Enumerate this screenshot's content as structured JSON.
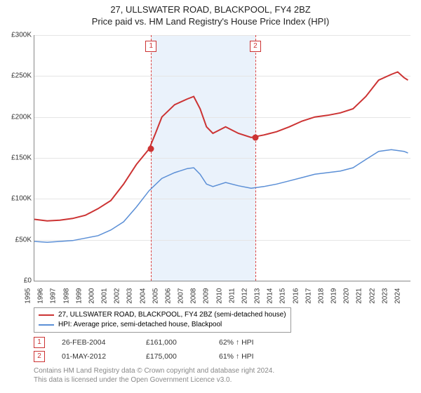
{
  "title_line1": "27, ULLSWATER ROAD, BLACKPOOL, FY4 2BZ",
  "title_line2": "Price paid vs. HM Land Registry's House Price Index (HPI)",
  "chart": {
    "type": "line",
    "background_color": "#ffffff",
    "grid_color": "#e5e5e5",
    "highlight_band_color": "#eaf2fb",
    "highlight_start_year": 2004.15,
    "highlight_end_year": 2012.33,
    "xlim": [
      1995,
      2024.5
    ],
    "ylim": [
      0,
      300000
    ],
    "ytick_step": 50000,
    "yticks": [
      "£0",
      "£50K",
      "£100K",
      "£150K",
      "£200K",
      "£250K",
      "£300K"
    ],
    "xticks": [
      1995,
      1996,
      1997,
      1998,
      1999,
      2000,
      2001,
      2002,
      2003,
      2004,
      2005,
      2006,
      2007,
      2008,
      2009,
      2010,
      2011,
      2012,
      2013,
      2014,
      2015,
      2016,
      2017,
      2018,
      2019,
      2020,
      2021,
      2022,
      2023,
      2024
    ],
    "label_fontsize": 10,
    "series": [
      {
        "name": "price_paid",
        "label": "27, ULLSWATER ROAD, BLACKPOOL, FY4 2BZ (semi-detached house)",
        "color": "#cc3333",
        "line_width": 2,
        "data": [
          [
            1995,
            75000
          ],
          [
            1996,
            73000
          ],
          [
            1997,
            74000
          ],
          [
            1998,
            76000
          ],
          [
            1999,
            80000
          ],
          [
            2000,
            88000
          ],
          [
            2001,
            98000
          ],
          [
            2002,
            118000
          ],
          [
            2003,
            142000
          ],
          [
            2004,
            161000
          ],
          [
            2004.5,
            180000
          ],
          [
            2005,
            200000
          ],
          [
            2006,
            215000
          ],
          [
            2007,
            222000
          ],
          [
            2007.5,
            225000
          ],
          [
            2008,
            210000
          ],
          [
            2008.5,
            188000
          ],
          [
            2009,
            180000
          ],
          [
            2010,
            188000
          ],
          [
            2011,
            180000
          ],
          [
            2012,
            175000
          ],
          [
            2013,
            178000
          ],
          [
            2014,
            182000
          ],
          [
            2015,
            188000
          ],
          [
            2016,
            195000
          ],
          [
            2017,
            200000
          ],
          [
            2018,
            202000
          ],
          [
            2019,
            205000
          ],
          [
            2020,
            210000
          ],
          [
            2021,
            225000
          ],
          [
            2022,
            245000
          ],
          [
            2023,
            252000
          ],
          [
            2023.5,
            255000
          ],
          [
            2024,
            248000
          ],
          [
            2024.3,
            245000
          ]
        ]
      },
      {
        "name": "hpi",
        "label": "HPI: Average price, semi-detached house, Blackpool",
        "color": "#5b8fd6",
        "line_width": 1.5,
        "data": [
          [
            1995,
            48000
          ],
          [
            1996,
            47000
          ],
          [
            1997,
            48000
          ],
          [
            1998,
            49000
          ],
          [
            1999,
            52000
          ],
          [
            2000,
            55000
          ],
          [
            2001,
            62000
          ],
          [
            2002,
            72000
          ],
          [
            2003,
            90000
          ],
          [
            2004,
            110000
          ],
          [
            2005,
            125000
          ],
          [
            2006,
            132000
          ],
          [
            2007,
            137000
          ],
          [
            2007.5,
            138000
          ],
          [
            2008,
            130000
          ],
          [
            2008.5,
            118000
          ],
          [
            2009,
            115000
          ],
          [
            2010,
            120000
          ],
          [
            2011,
            116000
          ],
          [
            2012,
            113000
          ],
          [
            2013,
            115000
          ],
          [
            2014,
            118000
          ],
          [
            2015,
            122000
          ],
          [
            2016,
            126000
          ],
          [
            2017,
            130000
          ],
          [
            2018,
            132000
          ],
          [
            2019,
            134000
          ],
          [
            2020,
            138000
          ],
          [
            2021,
            148000
          ],
          [
            2022,
            158000
          ],
          [
            2023,
            160000
          ],
          [
            2024,
            158000
          ],
          [
            2024.3,
            156000
          ]
        ]
      }
    ],
    "markers": [
      {
        "id": "1",
        "year": 2004.15,
        "price": 161000,
        "point_color": "#cc3333"
      },
      {
        "id": "2",
        "year": 2012.33,
        "price": 175000,
        "point_color": "#cc3333"
      }
    ]
  },
  "legend": {
    "rows": [
      {
        "color": "#cc3333",
        "label": "27, ULLSWATER ROAD, BLACKPOOL, FY4 2BZ (semi-detached house)"
      },
      {
        "color": "#5b8fd6",
        "label": "HPI: Average price, semi-detached house, Blackpool"
      }
    ]
  },
  "transactions": [
    {
      "id": "1",
      "date": "26-FEB-2004",
      "price": "£161,000",
      "pct": "62% ↑ HPI"
    },
    {
      "id": "2",
      "date": "01-MAY-2012",
      "price": "£175,000",
      "pct": "61% ↑ HPI"
    }
  ],
  "footer_line1": "Contains HM Land Registry data © Crown copyright and database right 2024.",
  "footer_line2": "This data is licensed under the Open Government Licence v3.0."
}
